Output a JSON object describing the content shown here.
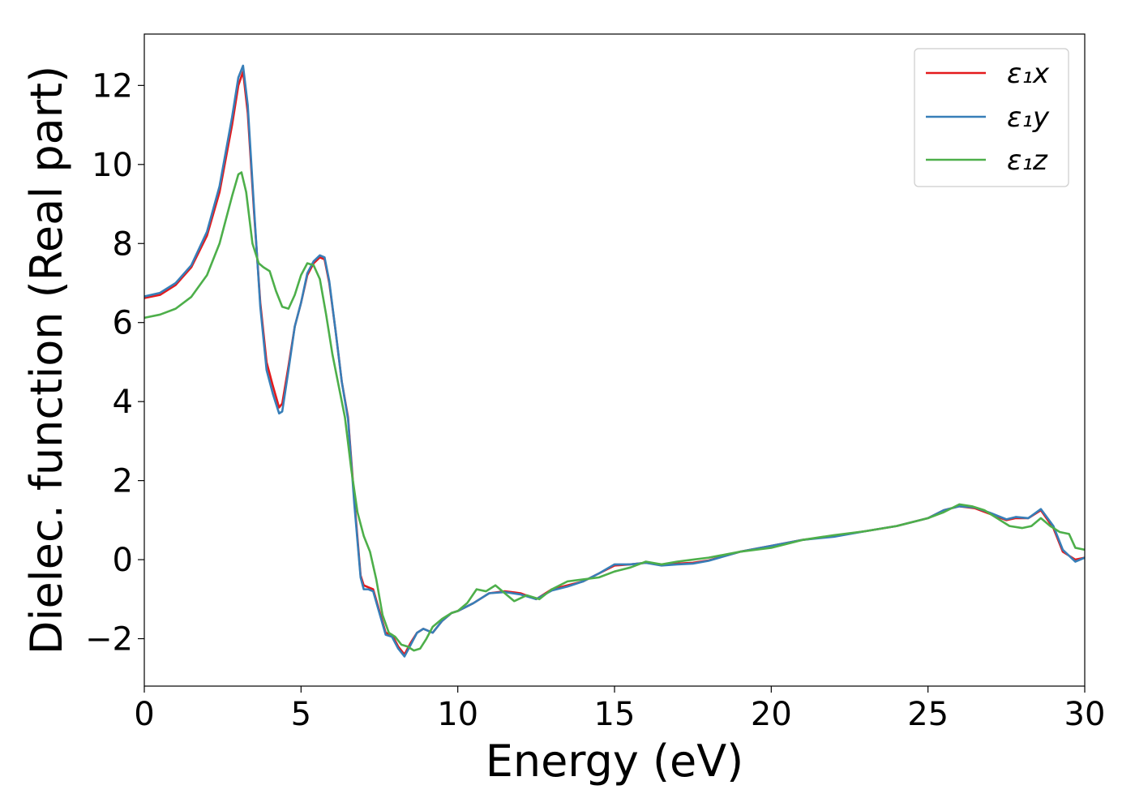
{
  "chart_data": {
    "type": "line",
    "xlabel": "Energy (eV)",
    "ylabel": "Dielec. function (Real part)",
    "xlim": [
      0,
      30
    ],
    "ylim": [
      -3.2,
      13.3
    ],
    "xticks": [
      0,
      5,
      10,
      15,
      20,
      25,
      30
    ],
    "xtick_labels": [
      "0",
      "5",
      "10",
      "15",
      "20",
      "25",
      "30"
    ],
    "yticks": [
      -2,
      0,
      2,
      4,
      6,
      8,
      10,
      12
    ],
    "ytick_labels": [
      "−2",
      "0",
      "2",
      "4",
      "6",
      "8",
      "10",
      "12"
    ],
    "grid": false,
    "legend_position": "top-right",
    "series": [
      {
        "name": "ε₁x",
        "color": "#e41a1c",
        "x": [
          0,
          0.5,
          1.0,
          1.5,
          2.0,
          2.4,
          2.8,
          3.0,
          3.15,
          3.3,
          3.5,
          3.7,
          3.9,
          4.1,
          4.3,
          4.4,
          4.6,
          4.8,
          5.0,
          5.2,
          5.4,
          5.6,
          5.75,
          5.9,
          6.1,
          6.3,
          6.5,
          6.7,
          6.9,
          7.0,
          7.15,
          7.3,
          7.5,
          7.7,
          7.9,
          8.1,
          8.3,
          8.5,
          8.7,
          8.9,
          9.2,
          9.5,
          9.8,
          10.0,
          10.5,
          11.0,
          11.5,
          12.0,
          12.5,
          13.0,
          13.5,
          14.0,
          14.5,
          15.0,
          15.5,
          16.0,
          16.5,
          17.0,
          17.5,
          18.0,
          19.0,
          20.0,
          21.0,
          22.0,
          23.0,
          24.0,
          25.0,
          25.5,
          26.0,
          26.5,
          27.0,
          27.5,
          27.8,
          28.2,
          28.6,
          29.0,
          29.3,
          29.7,
          30.0
        ],
        "y": [
          6.62,
          6.7,
          6.95,
          7.4,
          8.2,
          9.3,
          11.0,
          12.0,
          12.35,
          11.3,
          8.8,
          6.5,
          5.0,
          4.4,
          3.85,
          3.95,
          4.9,
          5.9,
          6.5,
          7.2,
          7.5,
          7.65,
          7.6,
          7.0,
          5.8,
          4.5,
          3.6,
          1.5,
          -0.4,
          -0.65,
          -0.7,
          -0.75,
          -1.3,
          -1.85,
          -1.9,
          -2.2,
          -2.4,
          -2.1,
          -1.85,
          -1.75,
          -1.85,
          -1.55,
          -1.35,
          -1.3,
          -1.1,
          -0.85,
          -0.8,
          -0.85,
          -1.0,
          -0.75,
          -0.65,
          -0.55,
          -0.35,
          -0.15,
          -0.12,
          -0.08,
          -0.12,
          -0.1,
          -0.08,
          -0.02,
          0.2,
          0.35,
          0.5,
          0.6,
          0.72,
          0.85,
          1.05,
          1.25,
          1.35,
          1.3,
          1.15,
          1.0,
          1.05,
          1.05,
          1.25,
          0.8,
          0.2,
          0.0,
          0.05
        ]
      },
      {
        "name": "ε₁y",
        "color": "#377eb8",
        "x": [
          0,
          0.5,
          1.0,
          1.5,
          2.0,
          2.4,
          2.8,
          3.0,
          3.15,
          3.3,
          3.5,
          3.7,
          3.9,
          4.1,
          4.3,
          4.4,
          4.6,
          4.8,
          5.0,
          5.2,
          5.4,
          5.6,
          5.75,
          5.9,
          6.1,
          6.3,
          6.5,
          6.7,
          6.9,
          7.0,
          7.15,
          7.3,
          7.5,
          7.7,
          7.9,
          8.1,
          8.3,
          8.5,
          8.7,
          8.9,
          9.2,
          9.5,
          9.8,
          10.0,
          10.5,
          11.0,
          11.5,
          12.0,
          12.5,
          13.0,
          13.5,
          14.0,
          14.5,
          15.0,
          15.5,
          16.0,
          16.5,
          17.0,
          17.5,
          18.0,
          19.0,
          20.0,
          21.0,
          22.0,
          23.0,
          24.0,
          25.0,
          25.5,
          26.0,
          26.5,
          27.0,
          27.5,
          27.8,
          28.2,
          28.6,
          29.0,
          29.3,
          29.7,
          30.0
        ],
        "y": [
          6.66,
          6.75,
          7.0,
          7.45,
          8.3,
          9.45,
          11.2,
          12.2,
          12.5,
          11.5,
          8.9,
          6.4,
          4.8,
          4.2,
          3.7,
          3.75,
          4.8,
          5.9,
          6.5,
          7.25,
          7.55,
          7.7,
          7.65,
          7.05,
          5.8,
          4.5,
          3.55,
          1.4,
          -0.45,
          -0.75,
          -0.75,
          -0.8,
          -1.35,
          -1.9,
          -1.95,
          -2.25,
          -2.45,
          -2.15,
          -1.85,
          -1.75,
          -1.85,
          -1.55,
          -1.35,
          -1.3,
          -1.1,
          -0.85,
          -0.82,
          -0.88,
          -1.0,
          -0.78,
          -0.68,
          -0.55,
          -0.35,
          -0.12,
          -0.12,
          -0.08,
          -0.15,
          -0.12,
          -0.1,
          -0.03,
          0.2,
          0.35,
          0.5,
          0.58,
          0.72,
          0.85,
          1.05,
          1.25,
          1.35,
          1.32,
          1.18,
          1.02,
          1.08,
          1.05,
          1.28,
          0.85,
          0.25,
          -0.05,
          0.05
        ]
      },
      {
        "name": "ε₁z",
        "color": "#4daf4a",
        "x": [
          0,
          0.5,
          1.0,
          1.5,
          2.0,
          2.4,
          2.8,
          3.0,
          3.1,
          3.25,
          3.45,
          3.65,
          3.8,
          4.0,
          4.2,
          4.4,
          4.6,
          4.8,
          5.0,
          5.2,
          5.4,
          5.6,
          5.8,
          6.0,
          6.2,
          6.4,
          6.6,
          6.8,
          7.0,
          7.2,
          7.4,
          7.6,
          7.8,
          8.0,
          8.2,
          8.4,
          8.6,
          8.8,
          9.0,
          9.2,
          9.5,
          9.8,
          10.0,
          10.3,
          10.6,
          10.9,
          11.2,
          11.5,
          11.8,
          12.2,
          12.6,
          13.0,
          13.5,
          14.0,
          14.5,
          15.0,
          15.5,
          16.0,
          16.5,
          17.0,
          17.5,
          18.0,
          19.0,
          20.0,
          21.0,
          22.0,
          23.0,
          24.0,
          25.0,
          25.5,
          26.0,
          26.4,
          26.8,
          27.2,
          27.6,
          28.0,
          28.3,
          28.6,
          28.9,
          29.2,
          29.5,
          29.7,
          30.0
        ],
        "y": [
          6.12,
          6.2,
          6.35,
          6.65,
          7.2,
          8.0,
          9.2,
          9.75,
          9.8,
          9.3,
          8.0,
          7.5,
          7.4,
          7.3,
          6.8,
          6.4,
          6.35,
          6.7,
          7.2,
          7.5,
          7.45,
          7.1,
          6.2,
          5.2,
          4.4,
          3.6,
          2.3,
          1.2,
          0.6,
          0.2,
          -0.5,
          -1.4,
          -1.85,
          -1.95,
          -2.15,
          -2.2,
          -2.3,
          -2.25,
          -2.0,
          -1.7,
          -1.5,
          -1.35,
          -1.3,
          -1.1,
          -0.75,
          -0.8,
          -0.65,
          -0.85,
          -1.05,
          -0.9,
          -1.0,
          -0.75,
          -0.55,
          -0.5,
          -0.45,
          -0.3,
          -0.2,
          -0.05,
          -0.12,
          -0.05,
          0.0,
          0.05,
          0.2,
          0.3,
          0.5,
          0.62,
          0.72,
          0.85,
          1.05,
          1.2,
          1.4,
          1.35,
          1.25,
          1.05,
          0.85,
          0.8,
          0.85,
          1.05,
          0.85,
          0.7,
          0.65,
          0.3,
          0.25
        ]
      }
    ]
  }
}
